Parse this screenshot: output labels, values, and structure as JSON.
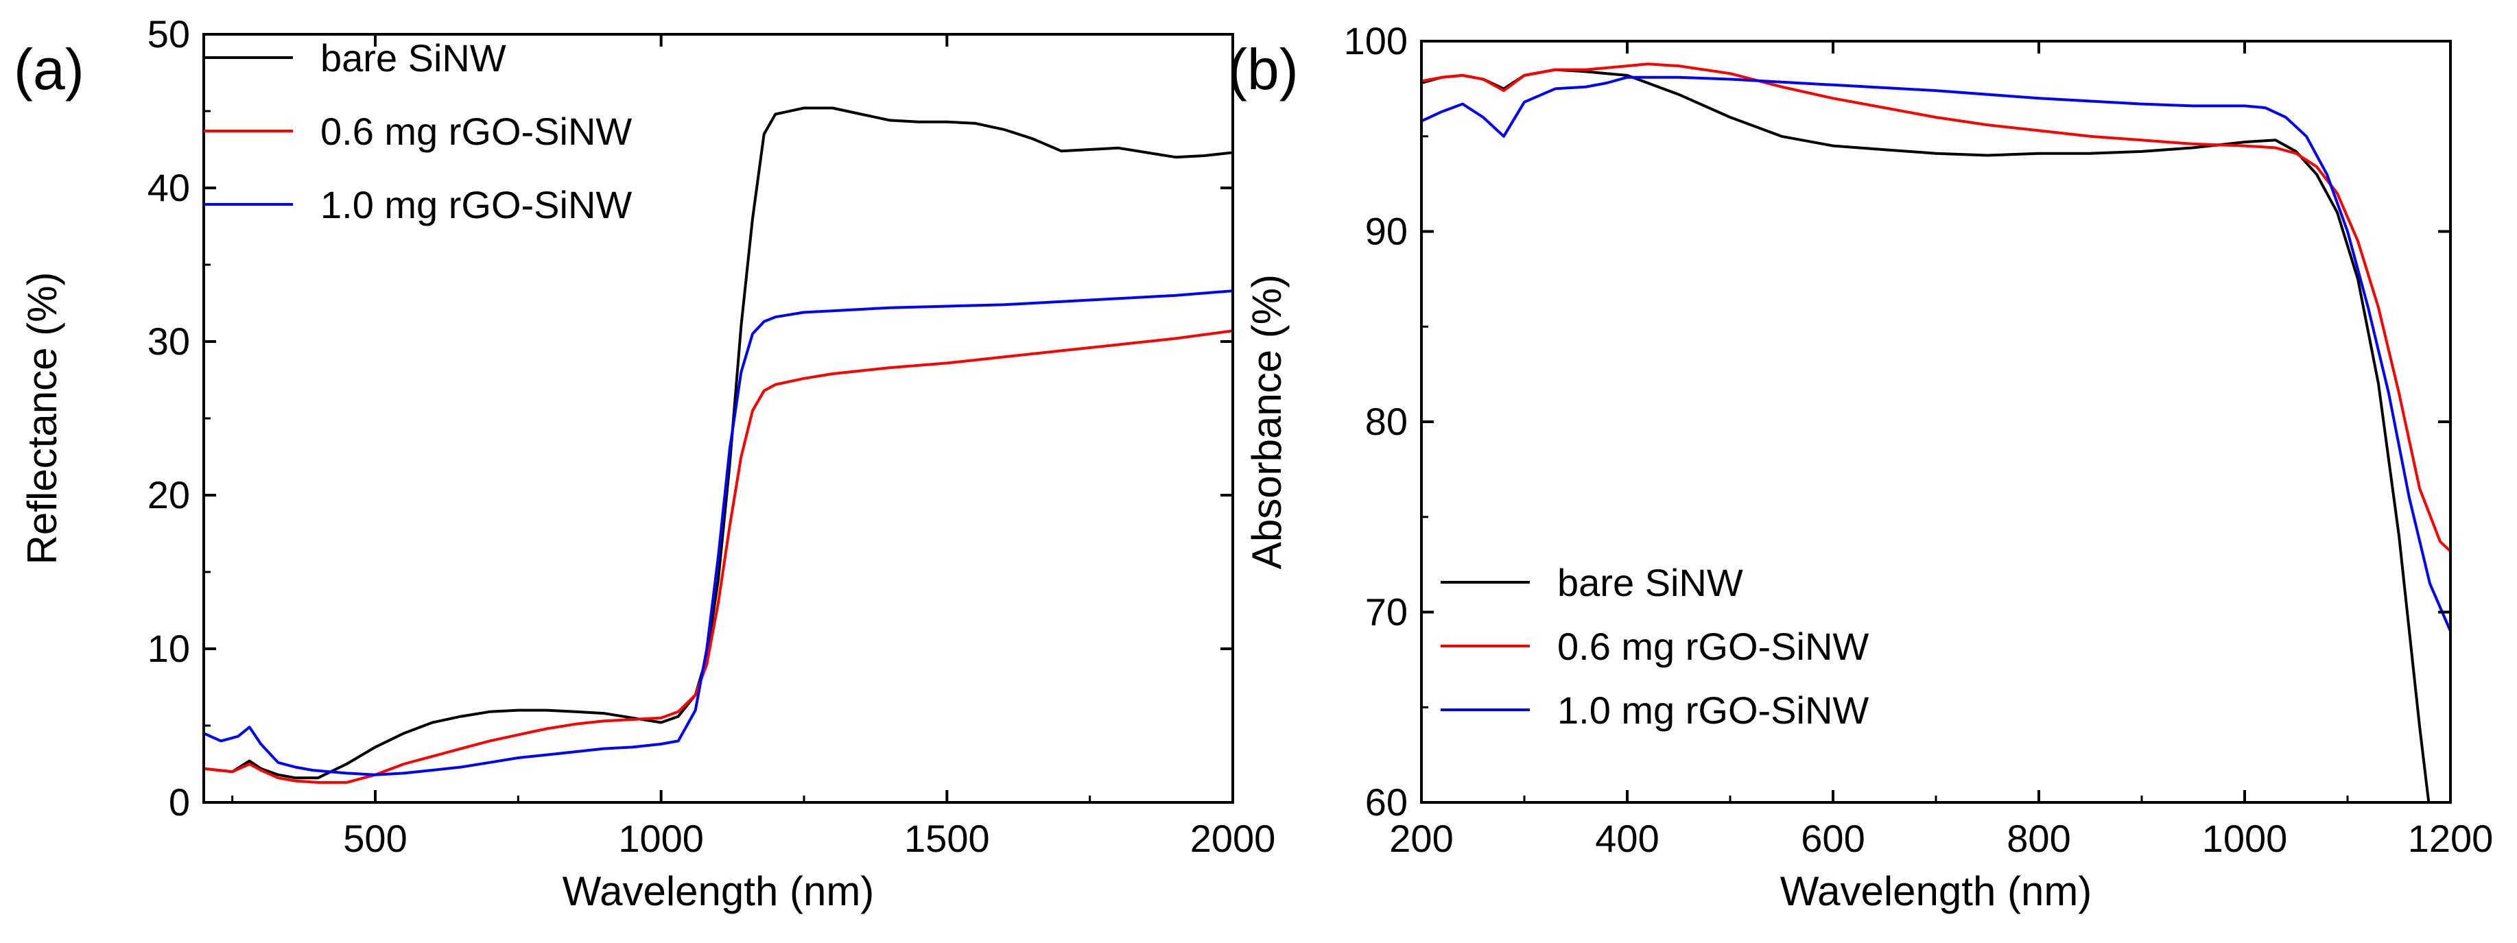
{
  "chart_data": [
    {
      "panel": "(a)",
      "type": "line",
      "xlabel": "Wavelength (nm)",
      "ylabel": "Reflectance (%)",
      "xlim": [
        200,
        2000
      ],
      "ylim": [
        0,
        50
      ],
      "xticks": [
        500,
        1000,
        1500,
        2000
      ],
      "yticks": [
        0,
        10,
        20,
        30,
        40,
        50
      ],
      "legend_position": "top-left",
      "series": [
        {
          "name": "bare SiNW",
          "color": "#000000",
          "x": [
            200,
            250,
            280,
            300,
            330,
            360,
            400,
            450,
            500,
            550,
            600,
            650,
            700,
            750,
            800,
            850,
            900,
            950,
            1000,
            1030,
            1060,
            1080,
            1100,
            1120,
            1140,
            1160,
            1180,
            1200,
            1250,
            1300,
            1350,
            1400,
            1450,
            1500,
            1550,
            1600,
            1650,
            1700,
            1750,
            1800,
            1850,
            1900,
            1950,
            2000
          ],
          "y": [
            2.2,
            2.0,
            2.7,
            2.2,
            1.8,
            1.6,
            1.6,
            2.5,
            3.6,
            4.5,
            5.2,
            5.6,
            5.9,
            6.0,
            6.0,
            5.9,
            5.8,
            5.5,
            5.2,
            5.6,
            7.0,
            9.5,
            14.5,
            22.0,
            31.0,
            38.0,
            43.5,
            44.8,
            45.2,
            45.2,
            44.8,
            44.4,
            44.3,
            44.3,
            44.2,
            43.8,
            43.2,
            42.4,
            42.5,
            42.6,
            42.3,
            42.0,
            42.1,
            42.3
          ]
        },
        {
          "name": "0.6 mg rGO-SiNW",
          "color": "#ff0000",
          "x": [
            200,
            250,
            280,
            300,
            330,
            360,
            400,
            450,
            500,
            550,
            600,
            650,
            700,
            750,
            800,
            850,
            900,
            950,
            1000,
            1030,
            1060,
            1080,
            1100,
            1120,
            1140,
            1160,
            1180,
            1200,
            1250,
            1300,
            1400,
            1500,
            1600,
            1700,
            1800,
            1900,
            2000
          ],
          "y": [
            2.2,
            2.0,
            2.5,
            2.1,
            1.6,
            1.4,
            1.3,
            1.3,
            1.8,
            2.5,
            3.0,
            3.5,
            4.0,
            4.4,
            4.8,
            5.1,
            5.3,
            5.4,
            5.5,
            5.9,
            7.0,
            9.0,
            13.0,
            18.0,
            22.5,
            25.5,
            26.8,
            27.2,
            27.6,
            27.9,
            28.3,
            28.6,
            29.0,
            29.4,
            29.8,
            30.2,
            30.7
          ]
        },
        {
          "name": "1.0 mg rGO-SiNW",
          "color": "#0000ff",
          "x": [
            200,
            230,
            260,
            280,
            300,
            330,
            360,
            390,
            420,
            450,
            500,
            550,
            600,
            650,
            700,
            750,
            800,
            850,
            900,
            950,
            1000,
            1030,
            1060,
            1080,
            1100,
            1120,
            1140,
            1160,
            1180,
            1200,
            1250,
            1300,
            1400,
            1500,
            1600,
            1700,
            1800,
            1900,
            2000
          ],
          "y": [
            4.5,
            4.0,
            4.3,
            4.9,
            3.8,
            2.6,
            2.3,
            2.1,
            2.0,
            1.9,
            1.8,
            1.9,
            2.1,
            2.3,
            2.6,
            2.9,
            3.1,
            3.3,
            3.5,
            3.6,
            3.8,
            4.0,
            6.0,
            10.0,
            16.0,
            23.0,
            28.0,
            30.5,
            31.3,
            31.6,
            31.9,
            32.0,
            32.2,
            32.3,
            32.4,
            32.6,
            32.8,
            33.0,
            33.3
          ]
        }
      ]
    },
    {
      "panel": "(b)",
      "type": "line",
      "xlabel": "Wavelength (nm)",
      "ylabel": "Absorbance (%)",
      "xlim": [
        200,
        1200
      ],
      "ylim": [
        60,
        100
      ],
      "xticks": [
        200,
        400,
        600,
        800,
        1000,
        1200
      ],
      "yticks": [
        60,
        70,
        80,
        90,
        100
      ],
      "legend_position": "bottom-left",
      "series": [
        {
          "name": "bare SiNW",
          "color": "#000000",
          "x": [
            200,
            220,
            240,
            260,
            280,
            300,
            330,
            360,
            380,
            400,
            420,
            450,
            500,
            550,
            600,
            650,
            700,
            750,
            800,
            850,
            900,
            950,
            1000,
            1030,
            1050,
            1070,
            1090,
            1110,
            1130,
            1150,
            1160,
            1170,
            1180
          ],
          "y": [
            97.8,
            98.1,
            98.2,
            98.0,
            97.5,
            98.2,
            98.5,
            98.4,
            98.3,
            98.2,
            97.8,
            97.2,
            96.0,
            95.0,
            94.5,
            94.3,
            94.1,
            94.0,
            94.1,
            94.1,
            94.2,
            94.4,
            94.7,
            94.8,
            94.2,
            93.0,
            91.0,
            87.5,
            82.0,
            74.0,
            69.0,
            64.0,
            59.5
          ]
        },
        {
          "name": "0.6 mg rGO-SiNW",
          "color": "#ff0000",
          "x": [
            200,
            220,
            240,
            260,
            280,
            300,
            330,
            360,
            400,
            420,
            450,
            500,
            550,
            600,
            650,
            700,
            750,
            800,
            850,
            900,
            950,
            1000,
            1030,
            1050,
            1070,
            1090,
            1110,
            1130,
            1150,
            1170,
            1190,
            1200
          ],
          "y": [
            97.9,
            98.1,
            98.2,
            98.0,
            97.4,
            98.2,
            98.5,
            98.5,
            98.7,
            98.8,
            98.7,
            98.3,
            97.6,
            97.0,
            96.5,
            96.0,
            95.6,
            95.3,
            95.0,
            94.8,
            94.6,
            94.5,
            94.4,
            94.1,
            93.4,
            92.0,
            89.5,
            86.0,
            81.5,
            76.5,
            73.7,
            73.2
          ]
        },
        {
          "name": "1.0 mg rGO-SiNW",
          "color": "#0000ff",
          "x": [
            200,
            220,
            240,
            260,
            280,
            300,
            330,
            360,
            380,
            400,
            450,
            500,
            600,
            700,
            800,
            900,
            950,
            1000,
            1020,
            1040,
            1060,
            1080,
            1100,
            1120,
            1140,
            1160,
            1180,
            1200
          ],
          "y": [
            95.8,
            96.3,
            96.7,
            96.0,
            95.0,
            96.8,
            97.5,
            97.6,
            97.8,
            98.1,
            98.1,
            98.0,
            97.7,
            97.4,
            97.0,
            96.7,
            96.6,
            96.6,
            96.5,
            96.0,
            95.0,
            93.0,
            90.0,
            86.0,
            81.5,
            76.0,
            71.5,
            69.0
          ]
        }
      ]
    }
  ]
}
